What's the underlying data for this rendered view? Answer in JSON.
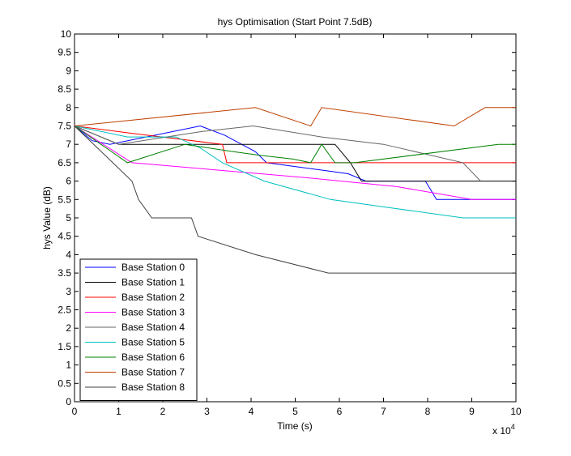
{
  "chart_data": {
    "type": "line",
    "title": "hys Optimisation (Start Point 7.5dB)",
    "xlabel": "Time (s)",
    "ylabel": "hys Value (dB)",
    "x_exponent_label": "x 10",
    "x_exponent_power": "4",
    "xlim": [
      0,
      10
    ],
    "ylim": [
      0,
      10
    ],
    "x_ticks": [
      "0",
      "1",
      "2",
      "3",
      "4",
      "5",
      "6",
      "7",
      "8",
      "9",
      "10"
    ],
    "y_ticks": [
      "0",
      "0.5",
      "1",
      "1.5",
      "2",
      "2.5",
      "3",
      "3.5",
      "4",
      "4.5",
      "5",
      "5.5",
      "6",
      "6.5",
      "7",
      "7.5",
      "8",
      "8.5",
      "9",
      "9.5",
      "10"
    ],
    "grid": false,
    "legend_position": "bottom-left",
    "series": [
      {
        "name": "Base Station 0",
        "color": "#0000ff",
        "x": [
          0,
          0.4,
          0.8,
          2.85,
          3.4,
          4.1,
          4.35,
          5.6,
          6.2,
          6.6,
          7.4,
          7.95,
          8.2,
          9.1,
          10
        ],
        "y": [
          7.5,
          7.1,
          7.0,
          7.5,
          7.25,
          6.8,
          6.5,
          6.3,
          6.2,
          6.0,
          6.0,
          6.0,
          5.5,
          5.5,
          5.5
        ]
      },
      {
        "name": "Base Station 1",
        "color": "#000000",
        "x": [
          0,
          1.0,
          5.55,
          5.9,
          6.25,
          6.5,
          6.9,
          10
        ],
        "y": [
          7.5,
          7.0,
          7.0,
          7.0,
          6.5,
          6.0,
          6.0,
          6.0
        ]
      },
      {
        "name": "Base Station 2",
        "color": "#ff0000",
        "x": [
          0,
          1.3,
          3.35,
          3.45,
          10
        ],
        "y": [
          7.5,
          7.3,
          7.0,
          6.5,
          6.5
        ]
      },
      {
        "name": "Base Station 3",
        "color": "#ff00ff",
        "x": [
          0,
          1.3,
          5.2,
          7.3,
          9.0,
          10
        ],
        "y": [
          7.5,
          6.5,
          6.1,
          5.85,
          5.5,
          5.5
        ]
      },
      {
        "name": "Base Station 4",
        "color": "#666666",
        "x": [
          0,
          1.0,
          2.9,
          4.05,
          5.6,
          7.0,
          8.8,
          9.2
        ],
        "y": [
          7.5,
          7.0,
          7.35,
          7.5,
          7.2,
          7.0,
          6.5,
          6.0
        ]
      },
      {
        "name": "Base Station 5",
        "color": "#00bfbf",
        "x": [
          0,
          1.2,
          2.3,
          2.85,
          3.35,
          4.3,
          5.8,
          8.8,
          10
        ],
        "y": [
          7.5,
          7.2,
          7.2,
          6.9,
          6.5,
          6.0,
          5.5,
          5.0,
          5.0
        ]
      },
      {
        "name": "Base Station 6",
        "color": "#008000",
        "x": [
          0,
          1.2,
          2.5,
          3.6,
          4.2,
          4.95,
          5.35,
          5.6,
          5.9,
          6.35,
          9.6,
          10
        ],
        "y": [
          7.5,
          6.5,
          7.0,
          6.8,
          6.7,
          6.6,
          6.5,
          7.0,
          6.5,
          6.5,
          7.0,
          7.0
        ]
      },
      {
        "name": "Base Station 7",
        "color": "#bf4000",
        "x": [
          0,
          4.1,
          5.35,
          5.6,
          8.6,
          9.3,
          10
        ],
        "y": [
          7.5,
          8.0,
          7.5,
          8.0,
          7.5,
          8.0,
          8.0
        ]
      },
      {
        "name": "Base Station 8",
        "color": "#404040",
        "x": [
          0,
          1.3,
          1.45,
          1.75,
          2.65,
          2.8,
          4.1,
          5.75,
          10
        ],
        "y": [
          7.5,
          6.0,
          5.5,
          5.0,
          5.0,
          4.5,
          4.0,
          3.5,
          3.5
        ]
      }
    ]
  }
}
